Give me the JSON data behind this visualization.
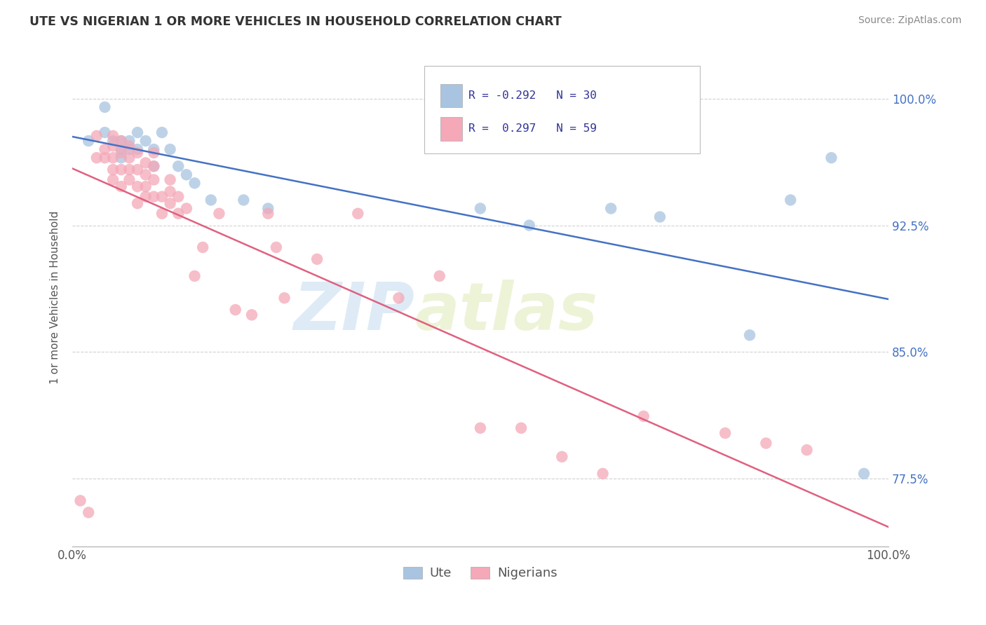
{
  "title": "UTE VS NIGERIAN 1 OR MORE VEHICLES IN HOUSEHOLD CORRELATION CHART",
  "source_text": "Source: ZipAtlas.com",
  "ylabel": "1 or more Vehicles in Household",
  "xlim": [
    0.0,
    1.0
  ],
  "ylim": [
    0.735,
    1.03
  ],
  "yticks": [
    0.775,
    0.85,
    0.925,
    1.0
  ],
  "ytick_labels": [
    "77.5%",
    "85.0%",
    "92.5%",
    "100.0%"
  ],
  "xticks": [
    0.0,
    1.0
  ],
  "xtick_labels": [
    "0.0%",
    "100.0%"
  ],
  "legend_R_ute": "-0.292",
  "legend_N_ute": "30",
  "legend_R_nig": "0.297",
  "legend_N_nig": "59",
  "ute_color": "#a8c4e0",
  "nig_color": "#f4a8b8",
  "ute_line_color": "#4472c4",
  "nig_line_color": "#e06080",
  "watermark_zip": "ZIP",
  "watermark_atlas": "atlas",
  "background_color": "#ffffff",
  "ute_x": [
    0.02,
    0.04,
    0.04,
    0.05,
    0.06,
    0.06,
    0.06,
    0.07,
    0.07,
    0.08,
    0.08,
    0.09,
    0.1,
    0.1,
    0.11,
    0.12,
    0.13,
    0.14,
    0.15,
    0.17,
    0.21,
    0.24,
    0.5,
    0.56,
    0.66,
    0.72,
    0.83,
    0.88,
    0.93,
    0.97
  ],
  "ute_y": [
    0.975,
    0.995,
    0.98,
    0.975,
    0.975,
    0.97,
    0.965,
    0.975,
    0.97,
    0.98,
    0.97,
    0.975,
    0.97,
    0.96,
    0.98,
    0.97,
    0.96,
    0.955,
    0.95,
    0.94,
    0.94,
    0.935,
    0.935,
    0.925,
    0.935,
    0.93,
    0.86,
    0.94,
    0.965,
    0.778
  ],
  "nig_x": [
    0.01,
    0.02,
    0.03,
    0.03,
    0.04,
    0.04,
    0.05,
    0.05,
    0.05,
    0.05,
    0.05,
    0.06,
    0.06,
    0.06,
    0.06,
    0.07,
    0.07,
    0.07,
    0.07,
    0.08,
    0.08,
    0.08,
    0.08,
    0.09,
    0.09,
    0.09,
    0.09,
    0.1,
    0.1,
    0.1,
    0.1,
    0.11,
    0.11,
    0.12,
    0.12,
    0.12,
    0.13,
    0.13,
    0.14,
    0.15,
    0.16,
    0.18,
    0.2,
    0.22,
    0.24,
    0.25,
    0.26,
    0.3,
    0.35,
    0.4,
    0.45,
    0.5,
    0.55,
    0.6,
    0.65,
    0.7,
    0.8,
    0.85,
    0.9
  ],
  "nig_y": [
    0.762,
    0.755,
    0.978,
    0.965,
    0.97,
    0.965,
    0.978,
    0.972,
    0.965,
    0.958,
    0.952,
    0.975,
    0.968,
    0.958,
    0.948,
    0.972,
    0.965,
    0.958,
    0.952,
    0.968,
    0.958,
    0.948,
    0.938,
    0.962,
    0.955,
    0.948,
    0.942,
    0.968,
    0.96,
    0.952,
    0.942,
    0.942,
    0.932,
    0.952,
    0.945,
    0.938,
    0.942,
    0.932,
    0.935,
    0.895,
    0.912,
    0.932,
    0.875,
    0.872,
    0.932,
    0.912,
    0.882,
    0.905,
    0.932,
    0.882,
    0.895,
    0.805,
    0.805,
    0.788,
    0.778,
    0.812,
    0.802,
    0.796,
    0.792
  ]
}
